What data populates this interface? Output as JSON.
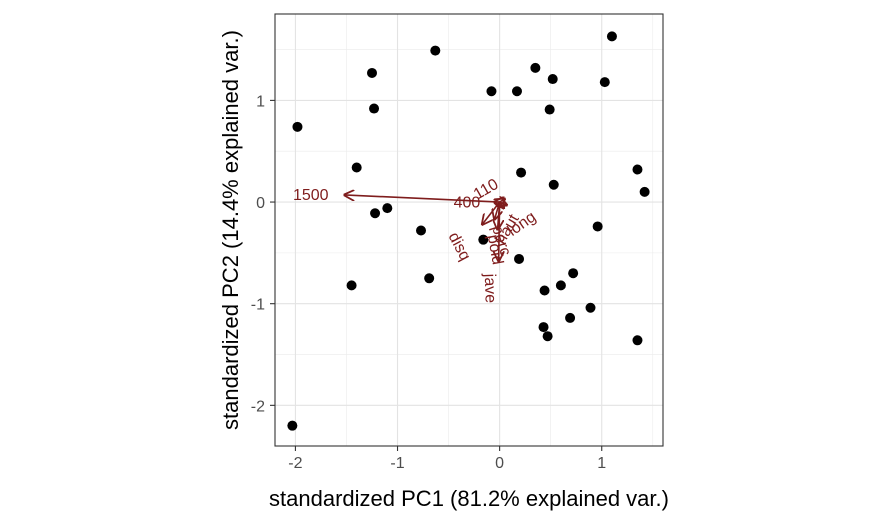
{
  "chart_data": {
    "type": "scatter",
    "subtype": "pca-biplot",
    "xlabel": "standardized PC1 (81.2% explained var.)",
    "ylabel": "standardized PC2 (14.4% explained var.)",
    "xlim": [
      -2.2,
      1.6
    ],
    "ylim": [
      -2.4,
      1.85
    ],
    "xticks": [
      -2,
      -1,
      0,
      1
    ],
    "yticks": [
      -2,
      -1,
      0,
      1
    ],
    "grid": true,
    "point_color": "#000000",
    "arrow_color": "#7f1d1d",
    "points": [
      {
        "x": 1.1,
        "y": 1.63
      },
      {
        "x": -0.63,
        "y": 1.49
      },
      {
        "x": 0.35,
        "y": 1.32
      },
      {
        "x": -1.25,
        "y": 1.27
      },
      {
        "x": 0.52,
        "y": 1.21
      },
      {
        "x": 1.03,
        "y": 1.18
      },
      {
        "x": -0.08,
        "y": 1.09
      },
      {
        "x": 0.17,
        "y": 1.09
      },
      {
        "x": -1.23,
        "y": 0.92
      },
      {
        "x": 0.49,
        "y": 0.91
      },
      {
        "x": -1.98,
        "y": 0.74
      },
      {
        "x": -1.4,
        "y": 0.34
      },
      {
        "x": 1.35,
        "y": 0.32
      },
      {
        "x": 0.21,
        "y": 0.29
      },
      {
        "x": 0.53,
        "y": 0.17
      },
      {
        "x": 1.42,
        "y": 0.1
      },
      {
        "x": -1.1,
        "y": -0.06
      },
      {
        "x": -1.22,
        "y": -0.11
      },
      {
        "x": 0.96,
        "y": -0.24
      },
      {
        "x": -0.77,
        "y": -0.28
      },
      {
        "x": -0.16,
        "y": -0.37
      },
      {
        "x": 0.19,
        "y": -0.56
      },
      {
        "x": 0.72,
        "y": -0.7
      },
      {
        "x": -0.69,
        "y": -0.75
      },
      {
        "x": 0.6,
        "y": -0.82
      },
      {
        "x": -1.45,
        "y": -0.82
      },
      {
        "x": 0.44,
        "y": -0.87
      },
      {
        "x": 0.89,
        "y": -1.04
      },
      {
        "x": 0.69,
        "y": -1.14
      },
      {
        "x": 0.43,
        "y": -1.23
      },
      {
        "x": 0.47,
        "y": -1.32
      },
      {
        "x": 1.35,
        "y": -1.36
      },
      {
        "x": -2.03,
        "y": -2.2
      }
    ],
    "arrows": [
      {
        "label": "1500",
        "x": -1.52,
        "y": 0.07,
        "lx": -1.85,
        "ly": 0.06,
        "angle": 0
      },
      {
        "label": "400",
        "x": -0.05,
        "y": 0.0,
        "lx": -0.32,
        "ly": -0.01,
        "angle": 0
      },
      {
        "label": "110",
        "x": 0.05,
        "y": 0.03,
        "lx": -0.13,
        "ly": 0.12,
        "angle": 30
      },
      {
        "label": "long",
        "x": 0.07,
        "y": -0.03,
        "lx": 0.22,
        "ly": -0.22,
        "angle": 35
      },
      {
        "label": "haut",
        "x": 0.04,
        "y": -0.06,
        "lx": 0.08,
        "ly": -0.27,
        "angle": 60
      },
      {
        "label": "disq",
        "x": -0.17,
        "y": -0.22,
        "lx": -0.4,
        "ly": -0.44,
        "angle": -62
      },
      {
        "label": "perc",
        "x": -0.05,
        "y": -0.17,
        "lx": 0.01,
        "ly": -0.38,
        "angle": -72
      },
      {
        "label": "poid",
        "x": -0.02,
        "y": -0.27,
        "lx": -0.05,
        "ly": -0.47,
        "angle": -80
      },
      {
        "label": "jave",
        "x": -0.01,
        "y": -0.58,
        "lx": -0.1,
        "ly": -0.85,
        "angle": -88
      }
    ]
  }
}
